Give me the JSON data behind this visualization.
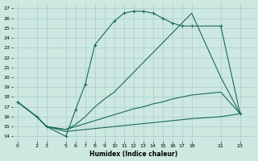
{
  "xlabel": "Humidex (Indice chaleur)",
  "background_color": "#cce8e0",
  "grid_color": "#aacccc",
  "line_color": "#1a6b5a",
  "xlim": [
    -0.5,
    24.5
  ],
  "ylim": [
    13.5,
    27.5
  ],
  "xticks": [
    0,
    2,
    3,
    5,
    6,
    7,
    8,
    9,
    10,
    11,
    12,
    13,
    14,
    15,
    16,
    17,
    18,
    21,
    23
  ],
  "yticks": [
    14,
    15,
    16,
    17,
    18,
    19,
    20,
    21,
    22,
    23,
    24,
    25,
    26,
    27
  ],
  "line_arc": {
    "x": [
      0,
      2,
      3,
      5,
      6,
      7,
      8,
      10,
      11,
      12,
      13,
      14,
      15,
      16,
      17,
      18,
      21,
      23
    ],
    "y": [
      17.5,
      16.0,
      15.0,
      14.0,
      16.7,
      19.3,
      23.3,
      25.7,
      26.5,
      26.7,
      26.7,
      26.5,
      26.0,
      25.5,
      25.2,
      25.2,
      25.2,
      16.3
    ]
  },
  "line_diag": {
    "x": [
      0,
      2,
      3,
      5,
      6,
      7,
      8,
      9,
      10,
      11,
      12,
      13,
      14,
      15,
      16,
      17,
      18,
      21,
      23
    ],
    "y": [
      17.5,
      16.0,
      15.0,
      14.7,
      15.2,
      16.0,
      17.0,
      17.8,
      18.5,
      19.5,
      20.5,
      21.5,
      22.5,
      23.5,
      24.5,
      25.5,
      26.5,
      20.0,
      16.3
    ]
  },
  "line_mid": {
    "x": [
      0,
      2,
      3,
      5,
      6,
      7,
      8,
      9,
      10,
      11,
      12,
      13,
      14,
      15,
      16,
      17,
      18,
      21,
      23
    ],
    "y": [
      17.5,
      16.0,
      15.0,
      14.7,
      15.0,
      15.3,
      15.6,
      15.9,
      16.2,
      16.5,
      16.8,
      17.0,
      17.3,
      17.5,
      17.8,
      18.0,
      18.2,
      18.5,
      16.3
    ]
  },
  "line_low": {
    "x": [
      0,
      2,
      3,
      5,
      6,
      7,
      8,
      9,
      10,
      11,
      12,
      13,
      14,
      15,
      16,
      17,
      18,
      21,
      23
    ],
    "y": [
      17.5,
      16.0,
      15.0,
      14.5,
      14.6,
      14.7,
      14.8,
      14.9,
      15.0,
      15.1,
      15.2,
      15.3,
      15.4,
      15.5,
      15.6,
      15.7,
      15.8,
      16.0,
      16.3
    ]
  }
}
